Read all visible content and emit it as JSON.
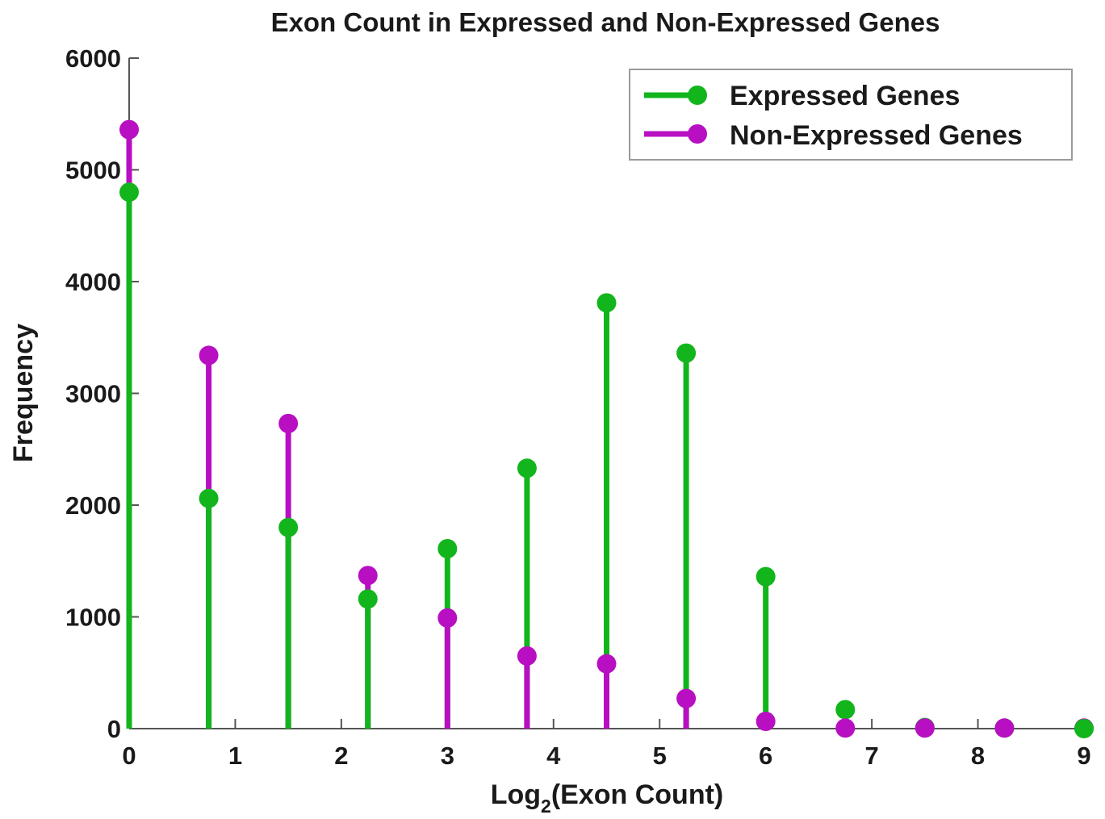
{
  "chart_data": {
    "type": "stem",
    "title": "Exon Count in Expressed and Non-Expressed Genes",
    "xlabel_main": "Log",
    "xlabel_sub": "2",
    "xlabel_rest": "(Exon Count)",
    "ylabel": "Frequency",
    "xlim": [
      0,
      9
    ],
    "ylim": [
      0,
      6000
    ],
    "xticks": [
      0,
      1,
      2,
      3,
      4,
      5,
      6,
      7,
      8,
      9
    ],
    "yticks": [
      0,
      1000,
      2000,
      3000,
      4000,
      5000,
      6000
    ],
    "grid": false,
    "legend_position": "top-right",
    "series": [
      {
        "name": "Expressed Genes",
        "color": "#12b51c",
        "x": [
          0,
          0.75,
          1.5,
          2.25,
          3,
          3.75,
          4.5,
          5.25,
          6,
          6.75,
          7.5,
          8.25,
          9
        ],
        "values": [
          4800,
          2060,
          1800,
          1160,
          1610,
          2330,
          3810,
          3360,
          1360,
          170,
          10,
          5,
          0
        ]
      },
      {
        "name": "Non-Expressed Genes",
        "color": "#b80fc2",
        "x": [
          0,
          0.75,
          1.5,
          2.25,
          3,
          3.75,
          4.5,
          5.25,
          6,
          6.75,
          7.5,
          8.25,
          9
        ],
        "values": [
          5360,
          3340,
          2730,
          1370,
          990,
          650,
          580,
          270,
          65,
          5,
          5,
          5,
          5
        ]
      }
    ]
  }
}
